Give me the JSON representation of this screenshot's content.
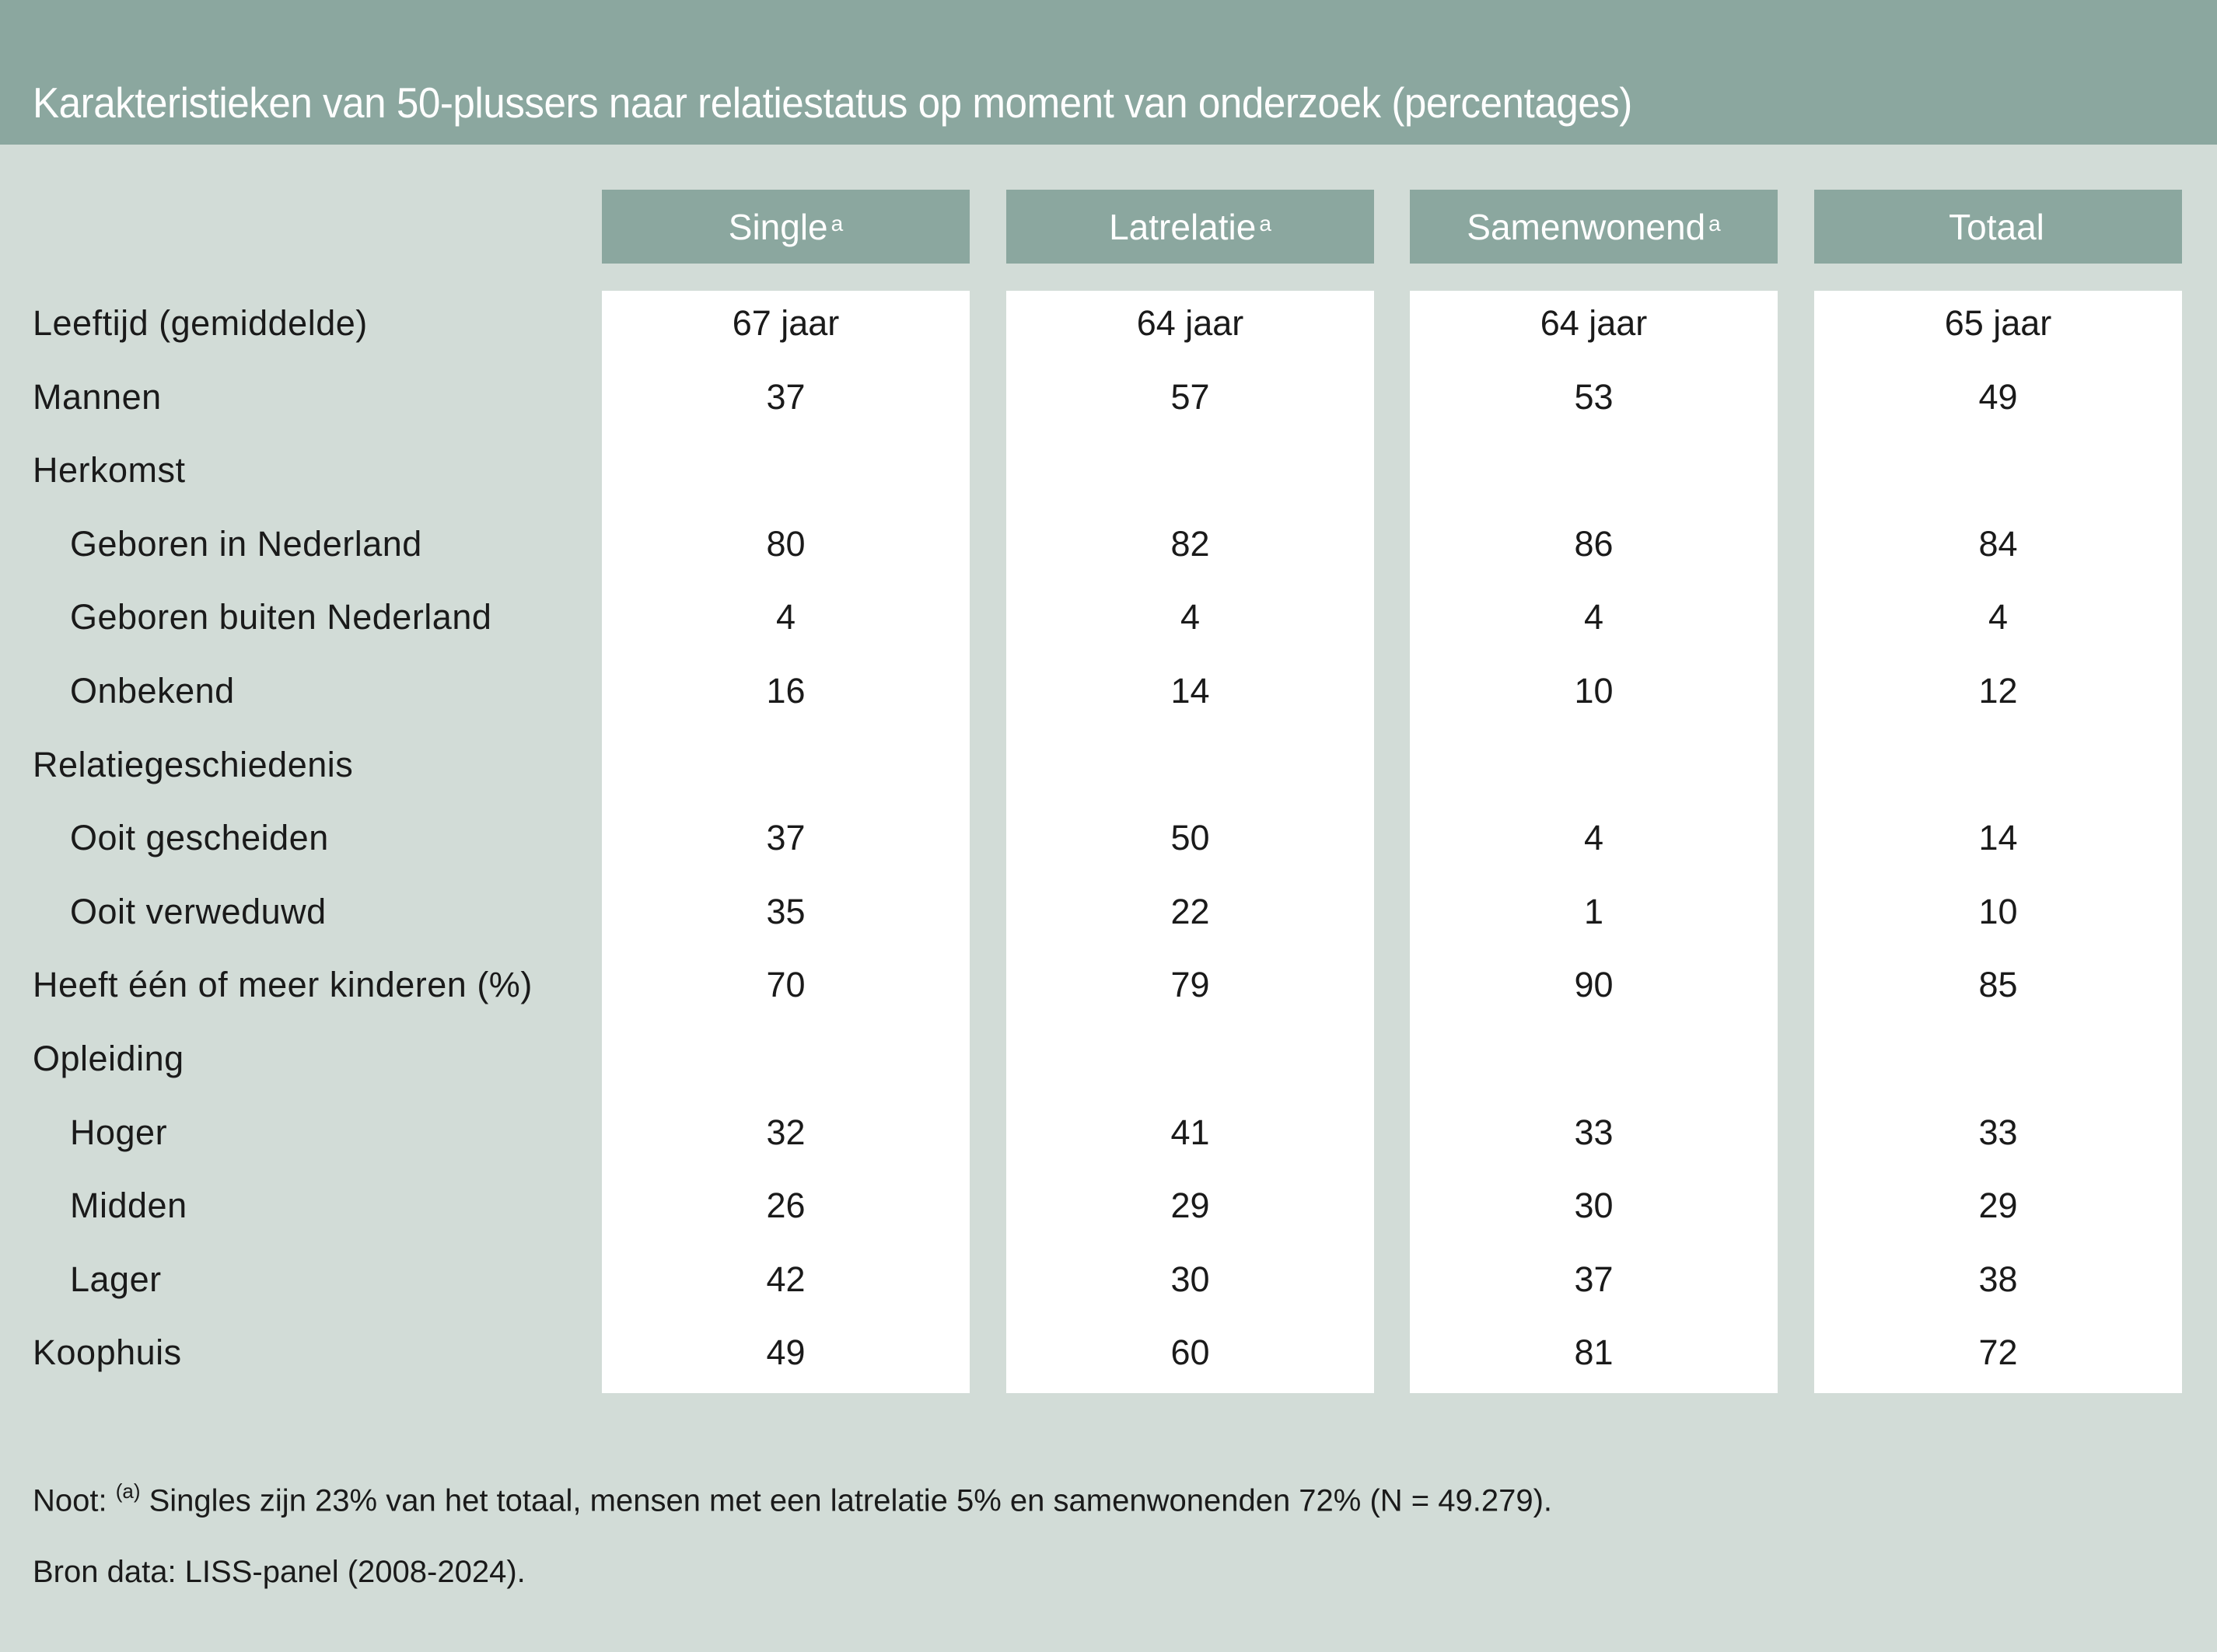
{
  "title": "Karakteristieken van 50-plussers naar relatiestatus op moment van onderzoek (percentages)",
  "columns": [
    {
      "label": "Single",
      "sup": "a"
    },
    {
      "label": "Latrelatie",
      "sup": "a"
    },
    {
      "label": "Samenwonend",
      "sup": "a"
    },
    {
      "label": "Totaal",
      "sup": ""
    }
  ],
  "rows": [
    {
      "label": "Leeftijd (gemiddelde)",
      "indent": false,
      "values": [
        "67 jaar",
        "64 jaar",
        "64 jaar",
        "65 jaar"
      ]
    },
    {
      "label": "Mannen",
      "indent": false,
      "values": [
        "37",
        "57",
        "53",
        "49"
      ]
    },
    {
      "label": "Herkomst",
      "indent": false,
      "values": [
        "",
        "",
        "",
        ""
      ]
    },
    {
      "label": "Geboren in Nederland",
      "indent": true,
      "values": [
        "80",
        "82",
        "86",
        "84"
      ]
    },
    {
      "label": "Geboren buiten Nederland",
      "indent": true,
      "values": [
        "4",
        "4",
        "4",
        "4"
      ]
    },
    {
      "label": "Onbekend",
      "indent": true,
      "values": [
        "16",
        "14",
        "10",
        "12"
      ]
    },
    {
      "label": "Relatiegeschiedenis",
      "indent": false,
      "values": [
        "",
        "",
        "",
        ""
      ]
    },
    {
      "label": "Ooit gescheiden",
      "indent": true,
      "values": [
        "37",
        "50",
        "4",
        "14"
      ]
    },
    {
      "label": "Ooit verweduwd",
      "indent": true,
      "values": [
        "35",
        "22",
        "1",
        "10"
      ]
    },
    {
      "label": "Heeft één of meer kinderen (%)",
      "indent": false,
      "values": [
        "70",
        "79",
        "90",
        "85"
      ]
    },
    {
      "label": "Opleiding",
      "indent": false,
      "values": [
        "",
        "",
        "",
        ""
      ]
    },
    {
      "label": "Hoger",
      "indent": true,
      "values": [
        "32",
        "41",
        "33",
        "33"
      ]
    },
    {
      "label": "Midden",
      "indent": true,
      "values": [
        "26",
        "29",
        "30",
        "29"
      ]
    },
    {
      "label": "Lager",
      "indent": true,
      "values": [
        "42",
        "30",
        "37",
        "38"
      ]
    },
    {
      "label": "Koophuis",
      "indent": false,
      "values": [
        "49",
        "60",
        "81",
        "72"
      ]
    }
  ],
  "notes": {
    "note_prefix": "Noot: ",
    "note_sup": "(a)",
    "note_text": " Singles zijn 23% van het totaal, mensen met een latrelatie 5% en samenwonenden 72% (N = 49.279).",
    "source": "Bron data: LISS-panel (2008-2024)."
  },
  "colors": {
    "header": "#8ba79f",
    "background": "#d2dcd7",
    "cell": "#ffffff",
    "text": "#1a1a1a"
  },
  "chart_data": {
    "type": "table",
    "title": "Karakteristieken van 50-plussers naar relatiestatus op moment van onderzoek (percentages)",
    "columns": [
      "Single",
      "Latrelatie",
      "Samenwonend",
      "Totaal"
    ],
    "rows": [
      {
        "label": "Leeftijd (gemiddelde)",
        "values": [
          "67 jaar",
          "64 jaar",
          "64 jaar",
          "65 jaar"
        ]
      },
      {
        "label": "Mannen",
        "values": [
          37,
          57,
          53,
          49
        ]
      },
      {
        "label": "Herkomst",
        "values": [
          null,
          null,
          null,
          null
        ]
      },
      {
        "label": "Geboren in Nederland",
        "values": [
          80,
          82,
          86,
          84
        ]
      },
      {
        "label": "Geboren buiten Nederland",
        "values": [
          4,
          4,
          4,
          4
        ]
      },
      {
        "label": "Onbekend",
        "values": [
          16,
          14,
          10,
          12
        ]
      },
      {
        "label": "Relatiegeschiedenis",
        "values": [
          null,
          null,
          null,
          null
        ]
      },
      {
        "label": "Ooit gescheiden",
        "values": [
          37,
          50,
          4,
          14
        ]
      },
      {
        "label": "Ooit verweduwd",
        "values": [
          35,
          22,
          1,
          10
        ]
      },
      {
        "label": "Heeft één of meer kinderen (%)",
        "values": [
          70,
          79,
          90,
          85
        ]
      },
      {
        "label": "Opleiding",
        "values": [
          null,
          null,
          null,
          null
        ]
      },
      {
        "label": "Hoger",
        "values": [
          32,
          41,
          33,
          33
        ]
      },
      {
        "label": "Midden",
        "values": [
          26,
          29,
          30,
          29
        ]
      },
      {
        "label": "Lager",
        "values": [
          42,
          30,
          37,
          38
        ]
      },
      {
        "label": "Koophuis",
        "values": [
          49,
          60,
          81,
          72
        ]
      }
    ],
    "notes": [
      "Noot: (a) Singles zijn 23% van het totaal, mensen met een latrelatie 5% en samenwonenden 72% (N = 49.279).",
      "Bron data: LISS-panel (2008-2024)."
    ]
  }
}
